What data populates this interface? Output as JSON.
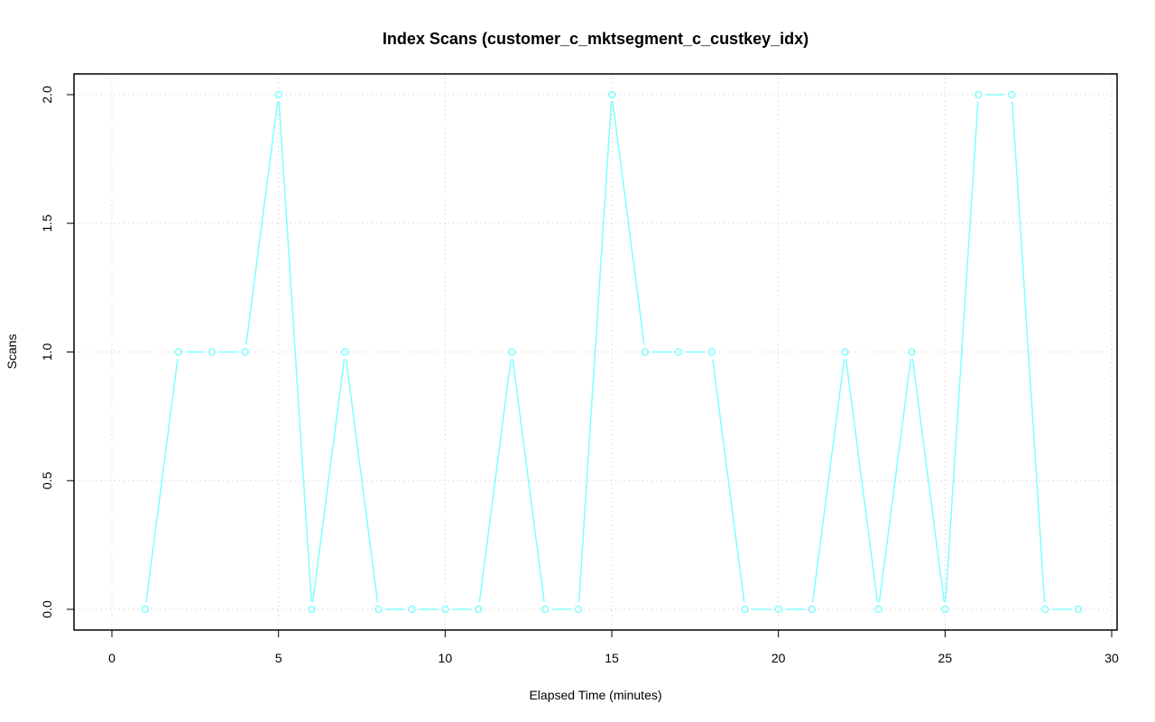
{
  "chart_data": {
    "type": "line",
    "title": "Index Scans (customer_c_mktsegment_c_custkey_idx)",
    "xlabel": "Elapsed Time (minutes)",
    "ylabel": "Scans",
    "xlim": [
      0,
      30
    ],
    "ylim": [
      0,
      2
    ],
    "x_ticks": [
      0,
      5,
      10,
      15,
      20,
      25,
      30
    ],
    "y_ticks": [
      "0.0",
      "0.5",
      "1.0",
      "1.5",
      "2.0"
    ],
    "grid": true,
    "colors": {
      "series": "#7fffff",
      "frame": "#000000",
      "grid": "#c8c8c8"
    },
    "series": [
      {
        "x": [
          1,
          2,
          3,
          4,
          5,
          6,
          7,
          8,
          9,
          10,
          11,
          12,
          13,
          14,
          15,
          16,
          17,
          18,
          19,
          20,
          21,
          22,
          23,
          24,
          25,
          26,
          27,
          28,
          29
        ],
        "values": [
          0,
          1,
          1,
          1,
          2,
          0,
          1,
          0,
          0,
          0,
          0,
          1,
          0,
          0,
          2,
          1,
          1,
          1,
          0,
          0,
          0,
          1,
          0,
          1,
          0,
          2,
          2,
          0,
          0
        ]
      }
    ]
  }
}
